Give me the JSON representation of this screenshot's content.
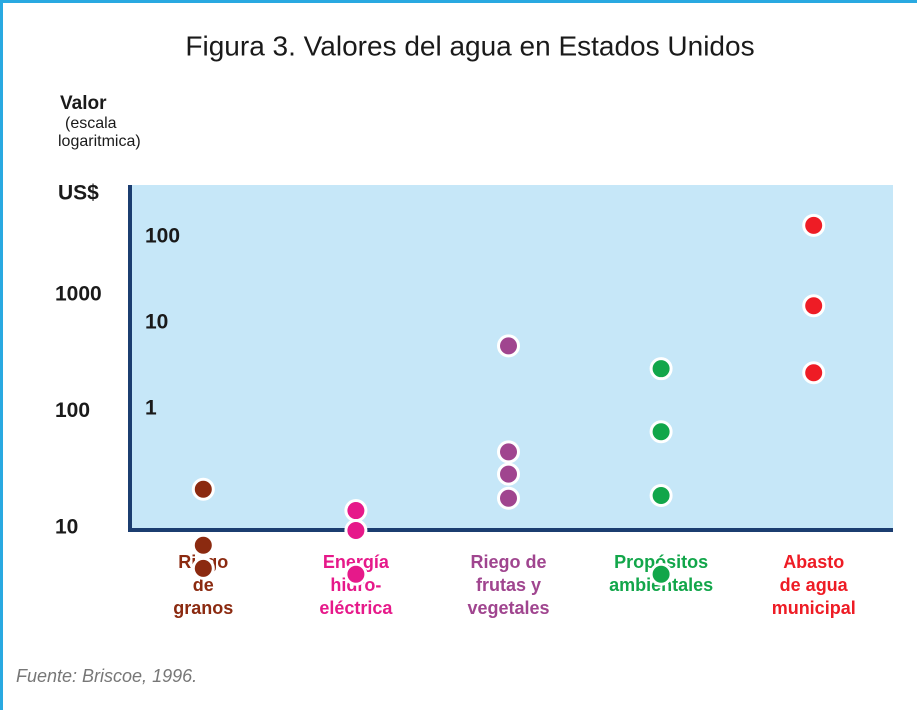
{
  "chart_data": {
    "type": "dot",
    "title": "Figura 3. Valores del agua en Estados Unidos",
    "y_label": [
      "Valor",
      "(escala",
      "logaritmica)"
    ],
    "y_unit": "US$",
    "source": "Fuente: Briscoe, 1996.",
    "log_scale": true,
    "grid": false,
    "ylim": [
      9.6,
      8800
    ],
    "yticks": [
      10,
      100,
      1000
    ],
    "y2lim": [
      0.039,
      403
    ],
    "y2ticks": [
      1,
      10,
      100
    ],
    "plot_color": "#c6e7f8",
    "axis_color": "#1b3d70",
    "groups": [
      {
        "name": [
          "Riego",
          "de",
          "granos"
        ],
        "color": "#8b2a10",
        "values": [
          21.5,
          7.1,
          4.5
        ]
      },
      {
        "name": [
          "Energía",
          "hidro-",
          "eléctrica"
        ],
        "color": "#e6198a",
        "values": [
          14.1,
          9.5,
          4.0
        ]
      },
      {
        "name": [
          "Riego de",
          "frutas y",
          "vegetales"
        ],
        "color": "#a0458f",
        "values": [
          366,
          45,
          29,
          18
        ]
      },
      {
        "name": [
          "Propósitos",
          "ambientales"
        ],
        "color": "#12a64a",
        "values": [
          233,
          67,
          19,
          4.0
        ]
      },
      {
        "name": [
          "Abasto",
          "de agua",
          "municipal"
        ],
        "color": "#ee1c25",
        "values": [
          3960,
          809,
          215
        ]
      }
    ]
  }
}
